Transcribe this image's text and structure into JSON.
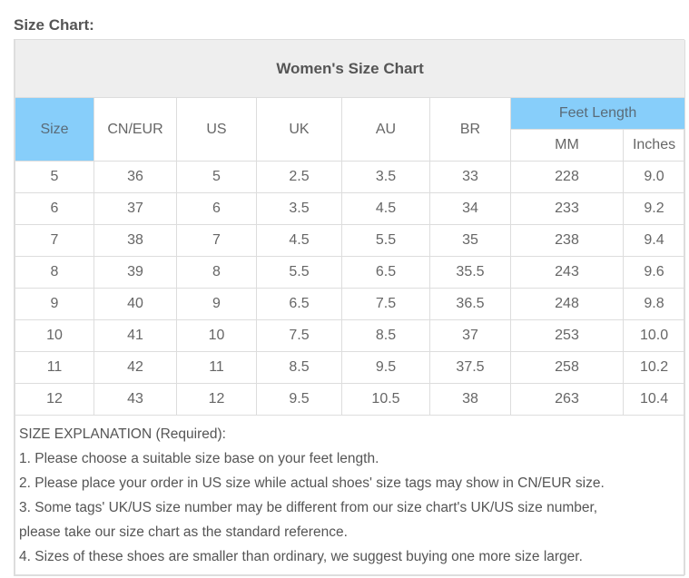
{
  "label": "Size Chart:",
  "title": "Women's Size Chart",
  "headers": {
    "size": "Size",
    "cn": "CN/EUR",
    "us": "US",
    "uk": "UK",
    "au": "AU",
    "br": "BR",
    "feet": "Feet Length",
    "mm": "MM",
    "in": "Inches"
  },
  "rows": [
    [
      "5",
      "36",
      "5",
      "2.5",
      "3.5",
      "33",
      "228",
      "9.0"
    ],
    [
      "6",
      "37",
      "6",
      "3.5",
      "4.5",
      "34",
      "233",
      "9.2"
    ],
    [
      "7",
      "38",
      "7",
      "4.5",
      "5.5",
      "35",
      "238",
      "9.4"
    ],
    [
      "8",
      "39",
      "8",
      "5.5",
      "6.5",
      "35.5",
      "243",
      "9.6"
    ],
    [
      "9",
      "40",
      "9",
      "6.5",
      "7.5",
      "36.5",
      "248",
      "9.8"
    ],
    [
      "10",
      "41",
      "10",
      "7.5",
      "8.5",
      "37",
      "253",
      "10.0"
    ],
    [
      "11",
      "42",
      "11",
      "8.5",
      "9.5",
      "37.5",
      "258",
      "10.2"
    ],
    [
      "12",
      "43",
      "12",
      "9.5",
      "10.5",
      "38",
      "263",
      "10.4"
    ]
  ],
  "explanation": [
    "SIZE EXPLANATION (Required):",
    "1. Please choose a suitable size base on your feet length.",
    "2. Please place your order in US size while actual shoes' size tags may show in CN/EUR size.",
    "3. Some tags' UK/US size number may be different from our size chart's UK/US size number,",
    "please take our size chart as the standard reference.",
    "4. Sizes of these shoes are smaller than ordinary, we suggest buying one more size larger."
  ],
  "colors": {
    "header_blue": "#87cefa",
    "title_bg": "#eeeeee"
  }
}
